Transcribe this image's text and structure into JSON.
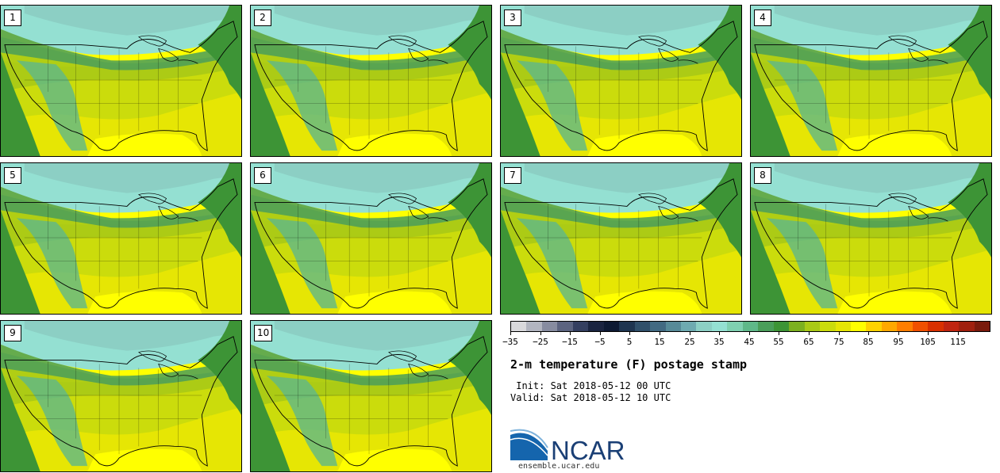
{
  "panels": [
    {
      "label": "1"
    },
    {
      "label": "2"
    },
    {
      "label": "3"
    },
    {
      "label": "4"
    },
    {
      "label": "5"
    },
    {
      "label": "6"
    },
    {
      "label": "7"
    },
    {
      "label": "8"
    },
    {
      "label": "9"
    },
    {
      "label": "10"
    }
  ],
  "colorbar": {
    "colors": [
      "#d9d9dc",
      "#b2b5c0",
      "#878ca0",
      "#5c6480",
      "#343f60",
      "#1a2440",
      "#0d1a33",
      "#1e3550",
      "#30506a",
      "#426a82",
      "#578a98",
      "#6eaab0",
      "#8ccfc4",
      "#94e0d2",
      "#7fd0b0",
      "#5fb889",
      "#4a9e5a",
      "#3d9436",
      "#7cb020",
      "#a9c916",
      "#cbdc0c",
      "#e6e604",
      "#ffff00",
      "#ffd200",
      "#ffa800",
      "#ff7e00",
      "#f05000",
      "#d93000",
      "#bf2410",
      "#a0200e",
      "#7a1a0c"
    ],
    "tick_labels": [
      "−35",
      "−25",
      "−15",
      "−5",
      "5",
      "15",
      "25",
      "35",
      "45",
      "55",
      "65",
      "75",
      "85",
      "95",
      "105",
      "115"
    ]
  },
  "title": "2-m temperature (F) postage stamp",
  "init_line": " Init: Sat 2018-05-12 00 UTC",
  "valid_line": "Valid: Sat 2018-05-12 10 UTC",
  "logo_text": "NCAR",
  "logo_url": "ensemble.ucar.edu"
}
